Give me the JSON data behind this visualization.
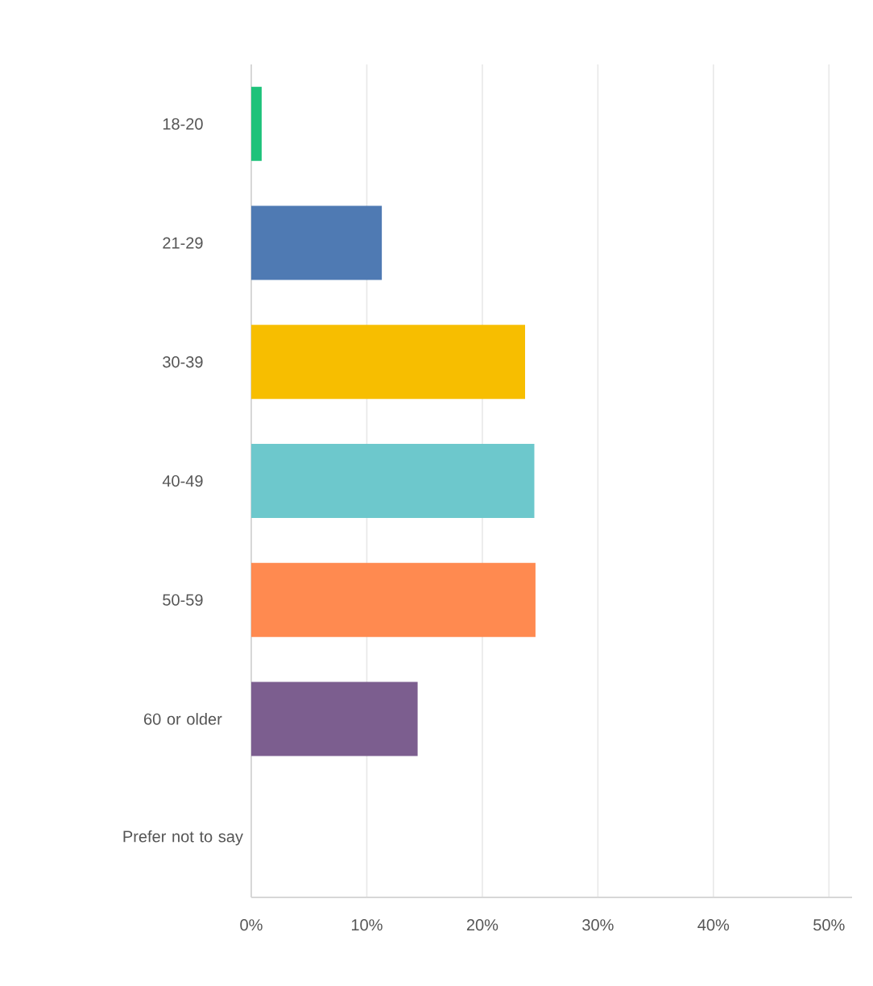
{
  "chart_data": {
    "type": "bar",
    "orientation": "horizontal",
    "categories": [
      "18-20",
      "21-29",
      "30-39",
      "40-49",
      "50-59",
      "60 or older",
      "Prefer not to say"
    ],
    "values": [
      0.9,
      11.3,
      23.7,
      24.5,
      24.6,
      14.4,
      0
    ],
    "colors": [
      "#1ec27a",
      "#4f7ab3",
      "#f7be00",
      "#6dc8cc",
      "#ff8a50",
      "#7c5e8f",
      "#9a9a9a"
    ],
    "xlim": [
      0,
      52
    ],
    "xticks": [
      {
        "value": 0,
        "label": "0%"
      },
      {
        "value": 10,
        "label": "10%"
      },
      {
        "value": 20,
        "label": "20%"
      },
      {
        "value": 30,
        "label": "30%"
      },
      {
        "value": 40,
        "label": "40%"
      },
      {
        "value": 50,
        "label": "50%"
      }
    ],
    "grid": "x"
  }
}
